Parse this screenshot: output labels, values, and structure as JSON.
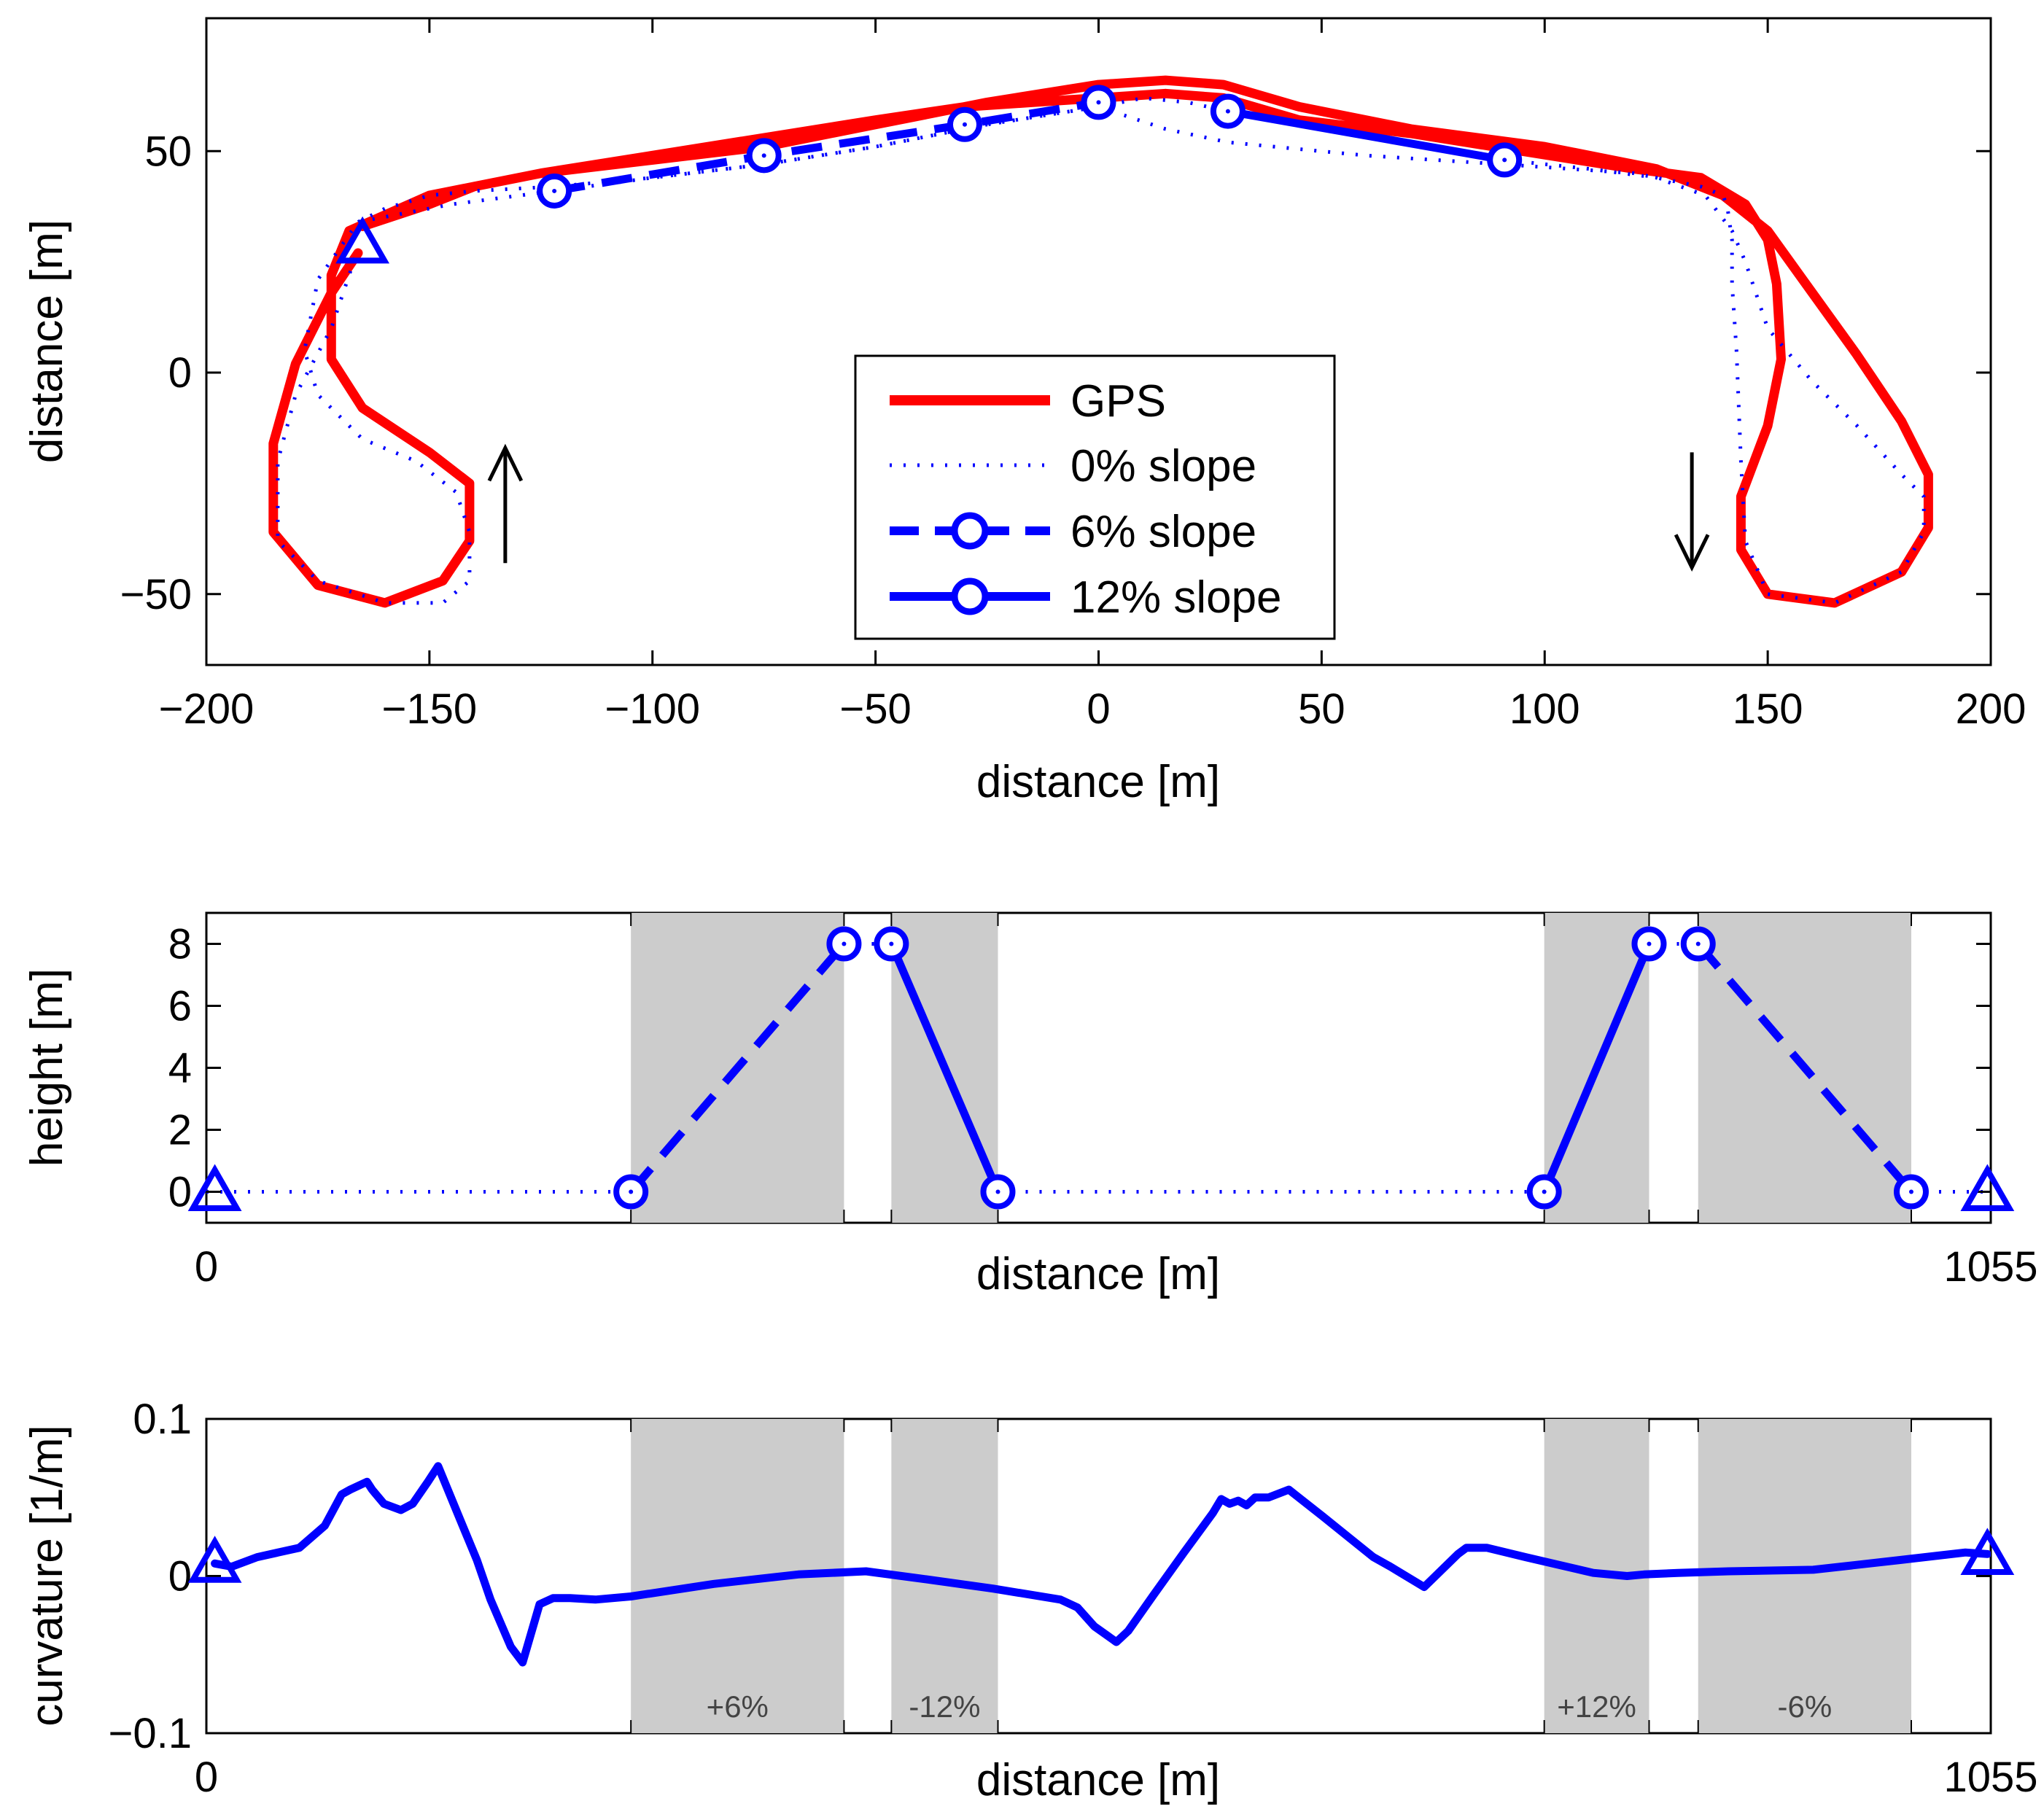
{
  "chart_data": [
    {
      "type": "line",
      "title": "",
      "xlabel": "distance [m]",
      "ylabel": "distance [m]",
      "xlim": [
        -200,
        200
      ],
      "ylim": [
        -66,
        80
      ],
      "xticks": [
        -200,
        -150,
        -100,
        -50,
        0,
        50,
        100,
        150,
        200
      ],
      "yticks": [
        -50,
        0,
        50
      ],
      "xtick_labels": [
        "−200",
        "−150",
        "−100",
        "−50",
        "0",
        "50",
        "100",
        "150",
        "200"
      ],
      "ytick_labels": [
        "−50",
        "0",
        "50"
      ],
      "legend": {
        "position": "center",
        "entries": [
          "GPS",
          "0% slope",
          "6% slope",
          "12% slope"
        ]
      },
      "series": [
        {
          "name": "GPS",
          "color": "#ff0000",
          "style": "solid",
          "x": [
            -165,
            -150,
            -140,
            -125,
            -100,
            -75,
            -50,
            -25,
            0,
            15,
            28,
            45,
            70,
            100,
            125,
            140,
            150,
            160,
            170,
            180,
            186,
            186,
            180,
            165,
            150,
            144,
            144,
            150,
            153,
            152,
            150,
            145,
            135,
            120,
            95,
            70,
            45,
            28,
            15,
            0,
            -15,
            -30,
            -50,
            -75,
            -100,
            -125,
            -150,
            -168,
            -172,
            -172,
            -165,
            -150,
            -141,
            -141,
            -147,
            -160,
            -175,
            -185,
            -185,
            -180,
            -172,
            -166
          ],
          "y": [
            33,
            38,
            42,
            45,
            48,
            51,
            56,
            61,
            65,
            66,
            65,
            60,
            55,
            51,
            46,
            40,
            32,
            18,
            4,
            -11,
            -23,
            -35,
            -45,
            -52,
            -50,
            -40,
            -28,
            -12,
            3,
            20,
            30,
            38,
            44,
            46,
            50,
            54,
            57,
            62,
            63,
            62,
            61,
            60,
            57,
            53,
            49,
            45,
            40,
            32,
            22,
            3,
            -8,
            -18,
            -25,
            -38,
            -47,
            -52,
            -48,
            -36,
            -16,
            2,
            18,
            27
          ]
        },
        {
          "name": "0% slope",
          "color": "#0000ff",
          "style": "dotted",
          "x": [
            -166,
            -160,
            -150,
            -140,
            -122,
            -100,
            -75,
            -50,
            -25,
            0,
            10,
            20,
            29,
            45,
            70,
            91,
            110,
            125,
            136,
            142,
            145,
            150,
            160,
            170,
            180,
            185,
            185,
            180,
            165,
            150,
            145,
            144,
            143,
            142,
            142,
            141,
            140,
            135,
            120,
            91,
            60,
            29,
            15,
            0,
            -25,
            -50,
            -75,
            -100,
            -122,
            -145,
            -166,
            -175,
            -178,
            -175,
            -165,
            -153,
            -144,
            -141,
            -141,
            -147,
            -160,
            -175,
            -184,
            -184,
            -180,
            -172,
            -166
          ],
          "y": [
            34,
            37,
            40,
            41,
            42,
            44,
            47,
            51,
            56,
            60,
            62,
            61,
            59,
            56,
            52,
            48,
            46,
            44,
            40,
            32,
            25,
            10,
            -2,
            -12,
            -23,
            -28,
            -36,
            -45,
            -52,
            -50,
            -38,
            -20,
            5,
            20,
            30,
            37,
            40,
            42,
            45,
            47,
            49,
            52,
            55,
            60,
            56,
            51,
            47,
            44,
            41,
            38,
            34,
            21,
            5,
            -5,
            -15,
            -20,
            -27,
            -36,
            -47,
            -52,
            -52,
            -47,
            -38,
            -20,
            -5,
            10,
            28
          ]
        },
        {
          "name": "6% slope",
          "color": "#0000ff",
          "style": "dashed",
          "marker": "circle",
          "x": [
            -122,
            -75,
            -30,
            0
          ],
          "y": [
            41,
            49,
            56,
            61
          ]
        },
        {
          "name": "12% slope",
          "color": "#0000ff",
          "style": "solid",
          "marker": "circle",
          "x": [
            29,
            91
          ],
          "y": [
            59,
            48
          ]
        }
      ],
      "markers": [
        {
          "shape": "triangle",
          "x": -165,
          "y": 29
        }
      ],
      "annotations": [
        {
          "type": "arrow",
          "direction": "up",
          "x": -133,
          "y_from": -43,
          "y_to": -17
        },
        {
          "type": "arrow",
          "direction": "down",
          "x": 133,
          "y_from": -18,
          "y_to": -44
        }
      ]
    },
    {
      "type": "line",
      "title": "",
      "xlabel": "distance [m]",
      "ylabel": "height [m]",
      "xlim": [
        0,
        1055
      ],
      "ylim": [
        -1,
        9
      ],
      "xticks": [
        0,
        1055
      ],
      "yticks": [
        0,
        2,
        4,
        6,
        8
      ],
      "xtick_labels": [
        "0",
        "1055"
      ],
      "ytick_labels": [
        "0",
        "2",
        "4",
        "6",
        "8"
      ],
      "shaded_regions": [
        [
          251,
          377
        ],
        [
          405,
          468
        ],
        [
          791,
          853
        ],
        [
          882,
          1008
        ]
      ],
      "series": [
        {
          "name": "0% slope",
          "color": "#0000ff",
          "style": "dotted",
          "x": [
            0,
            251
          ],
          "y": [
            0,
            0
          ]
        },
        {
          "name": "6% slope",
          "color": "#0000ff",
          "style": "dashed",
          "marker": "circle",
          "x": [
            251,
            377
          ],
          "y": [
            0,
            8
          ]
        },
        {
          "name": "0% slope",
          "color": "#0000ff",
          "style": "dotted",
          "x": [
            377,
            405
          ],
          "y": [
            8,
            8
          ]
        },
        {
          "name": "12% slope",
          "color": "#0000ff",
          "style": "solid",
          "marker": "circle",
          "x": [
            405,
            468
          ],
          "y": [
            8,
            0
          ]
        },
        {
          "name": "0% slope",
          "color": "#0000ff",
          "style": "dotted",
          "x": [
            468,
            791
          ],
          "y": [
            0,
            0
          ]
        },
        {
          "name": "12% slope",
          "color": "#0000ff",
          "style": "solid",
          "marker": "circle",
          "x": [
            791,
            853
          ],
          "y": [
            0,
            8
          ]
        },
        {
          "name": "0% slope",
          "color": "#0000ff",
          "style": "dotted",
          "x": [
            853,
            882
          ],
          "y": [
            8,
            8
          ]
        },
        {
          "name": "6% slope",
          "color": "#0000ff",
          "style": "dashed",
          "marker": "circle",
          "x": [
            882,
            1008
          ],
          "y": [
            8,
            0
          ]
        },
        {
          "name": "0% slope",
          "color": "#0000ff",
          "style": "dotted",
          "x": [
            1008,
            1055
          ],
          "y": [
            0,
            0
          ]
        }
      ],
      "markers": [
        {
          "shape": "triangle",
          "x": 5,
          "y": 0
        },
        {
          "shape": "triangle",
          "x": 1053,
          "y": 0
        }
      ]
    },
    {
      "type": "line",
      "title": "",
      "xlabel": "distance [m]",
      "ylabel": "curvature [1/m]",
      "xlim": [
        0,
        1055
      ],
      "ylim": [
        -0.1,
        0.1
      ],
      "xticks": [
        0,
        1055
      ],
      "yticks": [
        -0.1,
        0,
        0.1
      ],
      "xtick_labels": [
        "0",
        "1055"
      ],
      "ytick_labels": [
        "−0.1",
        "0",
        "0.1"
      ],
      "shaded_regions": [
        [
          251,
          377
        ],
        [
          405,
          468
        ],
        [
          791,
          853
        ],
        [
          882,
          1008
        ]
      ],
      "shaded_labels": [
        "+6%",
        "-12%",
        "+12%",
        "-6%"
      ],
      "series": [
        {
          "name": "curvature",
          "color": "#0000ff",
          "style": "solid",
          "x": [
            5,
            15,
            30,
            55,
            70,
            80,
            85,
            95,
            98,
            105,
            115,
            122,
            131,
            137,
            150,
            160,
            168,
            180,
            187,
            197,
            205,
            215,
            230,
            251,
            300,
            350,
            390,
            425,
            465,
            505,
            515,
            525,
            538,
            545,
            560,
            578,
            595,
            600,
            605,
            610,
            615,
            620,
            628,
            640,
            660,
            675,
            690,
            700,
            720,
            740,
            745,
            757,
            780,
            820,
            840,
            850,
            870,
            900,
            950,
            1000,
            1040,
            1053
          ],
          "y": [
            0.008,
            0.006,
            0.012,
            0.018,
            0.032,
            0.052,
            0.055,
            0.06,
            0.055,
            0.046,
            0.042,
            0.046,
            0.06,
            0.07,
            0.036,
            0.01,
            -0.015,
            -0.045,
            -0.055,
            -0.018,
            -0.014,
            -0.014,
            -0.015,
            -0.013,
            -0.005,
            0.001,
            0.003,
            -0.002,
            -0.008,
            -0.015,
            -0.02,
            -0.032,
            -0.042,
            -0.035,
            -0.012,
            0.015,
            0.04,
            0.049,
            0.046,
            0.048,
            0.045,
            0.05,
            0.05,
            0.055,
            0.038,
            0.025,
            0.012,
            0.006,
            -0.007,
            0.014,
            0.018,
            0.018,
            0.012,
            0.002,
            0.0,
            0.001,
            0.002,
            0.003,
            0.004,
            0.01,
            0.015,
            0.014
          ]
        }
      ],
      "markers": [
        {
          "shape": "triangle",
          "x": 5,
          "y": 0.008
        },
        {
          "shape": "triangle",
          "x": 1053,
          "y": 0.013
        }
      ]
    }
  ]
}
